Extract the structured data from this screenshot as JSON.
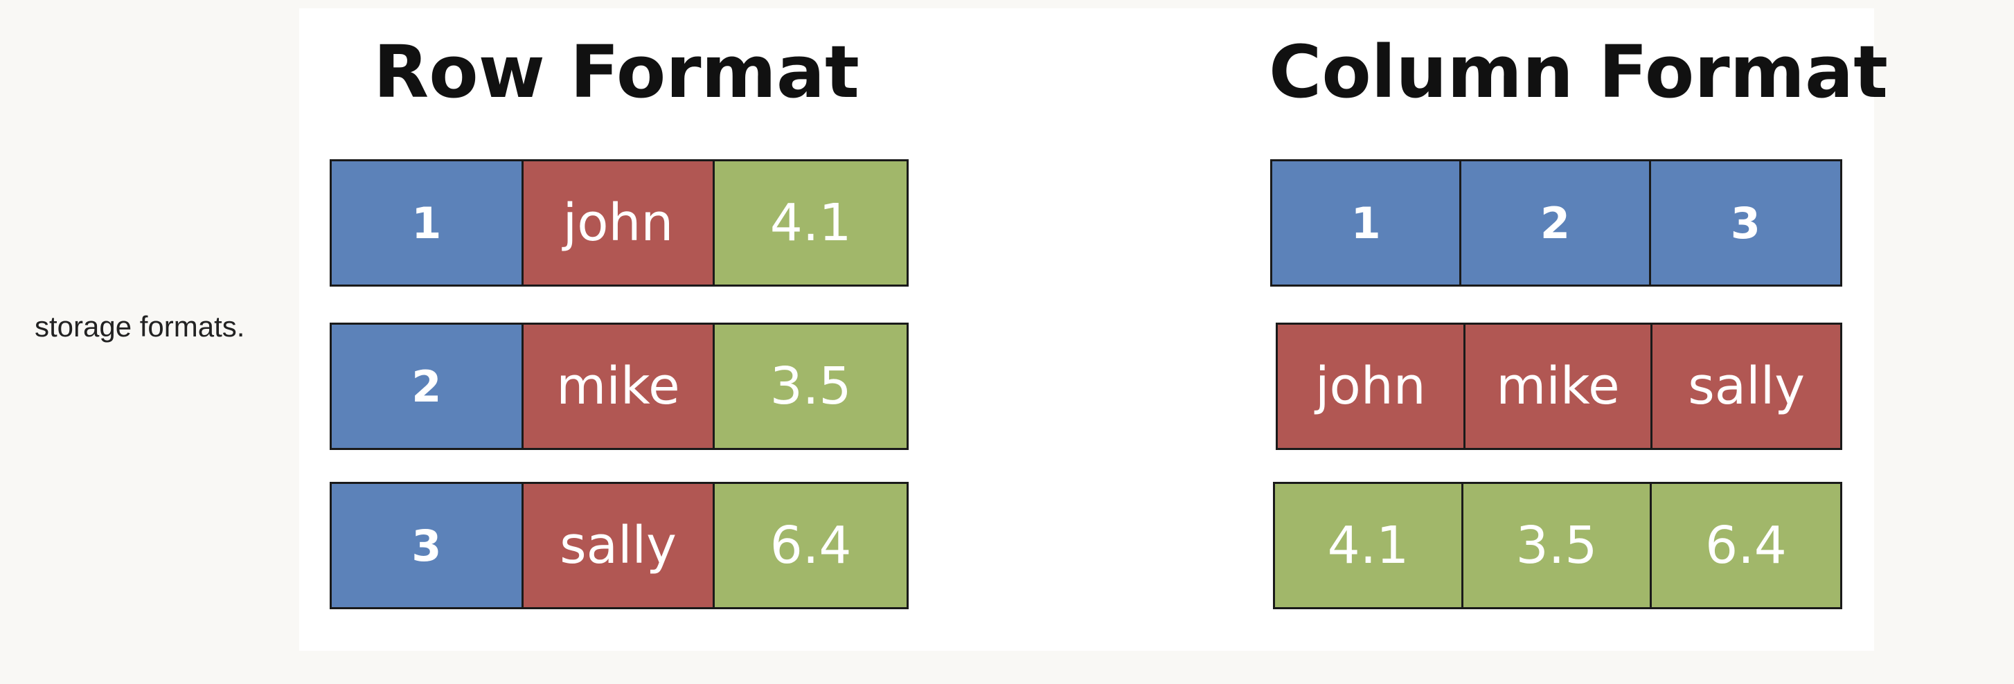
{
  "caption": "storage formats.",
  "row_format": {
    "title": "Row Format",
    "rows": [
      {
        "cells": [
          {
            "text": "1",
            "color": "#5c82b9",
            "num": true
          },
          {
            "text": "john",
            "color": "#b15753",
            "num": false
          },
          {
            "text": "4.1",
            "color": "#a1b76a",
            "num": false
          }
        ]
      },
      {
        "cells": [
          {
            "text": "2",
            "color": "#5c82b9",
            "num": true
          },
          {
            "text": "mike",
            "color": "#b15753",
            "num": false
          },
          {
            "text": "3.5",
            "color": "#a1b76a",
            "num": false
          }
        ]
      },
      {
        "cells": [
          {
            "text": "3",
            "color": "#5c82b9",
            "num": true
          },
          {
            "text": "sally",
            "color": "#b15753",
            "num": false
          },
          {
            "text": "6.4",
            "color": "#a1b76a",
            "num": false
          }
        ]
      }
    ]
  },
  "column_format": {
    "title": "Column Format",
    "rows": [
      {
        "cells": [
          {
            "text": "1",
            "color": "#5c82b9",
            "num": true
          },
          {
            "text": "2",
            "color": "#5c82b9",
            "num": true
          },
          {
            "text": "3",
            "color": "#5c82b9",
            "num": true
          }
        ]
      },
      {
        "cells": [
          {
            "text": "john",
            "color": "#b15753",
            "num": false
          },
          {
            "text": "mike",
            "color": "#b15753",
            "num": false
          },
          {
            "text": "sally",
            "color": "#b15753",
            "num": false
          }
        ]
      },
      {
        "cells": [
          {
            "text": "4.1",
            "color": "#a1b76a",
            "num": false
          },
          {
            "text": "3.5",
            "color": "#a1b76a",
            "num": false
          },
          {
            "text": "6.4",
            "color": "#a1b76a",
            "num": false
          }
        ]
      }
    ]
  }
}
